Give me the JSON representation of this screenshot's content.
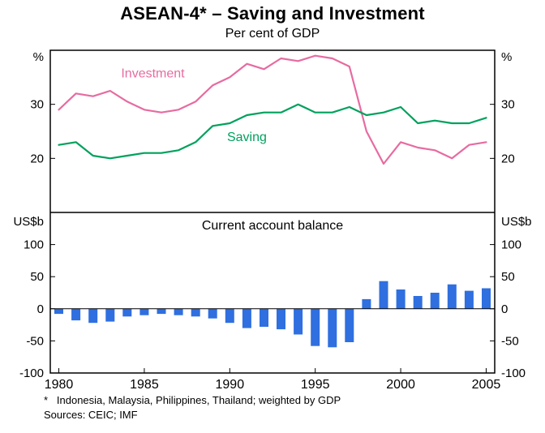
{
  "header": {
    "title": "ASEAN-4* – Saving and Investment",
    "subtitle": "Per cent of GDP"
  },
  "footnotes": {
    "note": "*   Indonesia, Malaysia, Philippines, Thailand; weighted by GDP",
    "sources": "Sources: CEIC; IMF"
  },
  "colors": {
    "investment": "#e76ba0",
    "saving": "#00a15d",
    "bars": "#2f6fe0",
    "axis": "#000000"
  },
  "x_axis": {
    "range": [
      1980,
      2005
    ],
    "tick_years": [
      1980,
      1985,
      1990,
      1995,
      2000,
      2005
    ]
  },
  "chart_data": [
    {
      "type": "line",
      "panel": "top",
      "unit_label": "%",
      "ylim": [
        10,
        40
      ],
      "yticks": [
        20,
        30
      ],
      "x": [
        1980,
        1981,
        1982,
        1983,
        1984,
        1985,
        1986,
        1987,
        1988,
        1989,
        1990,
        1991,
        1992,
        1993,
        1994,
        1995,
        1996,
        1997,
        1998,
        1999,
        2000,
        2001,
        2002,
        2003,
        2004,
        2005
      ],
      "series": [
        {
          "name": "Investment",
          "color": "#e76ba0",
          "values": [
            29,
            32,
            31.5,
            32.5,
            30.5,
            29,
            28.5,
            29,
            30.5,
            33.5,
            35,
            37.5,
            36.5,
            38.5,
            38,
            39,
            38.5,
            37,
            25,
            19,
            23,
            22,
            21.5,
            20,
            22.5,
            23
          ],
          "label_pos": {
            "year": 1985.5,
            "value": 35
          }
        },
        {
          "name": "Saving",
          "color": "#00a15d",
          "values": [
            22.5,
            23,
            20.5,
            20,
            20.5,
            21,
            21,
            21.5,
            23,
            26,
            26.5,
            28,
            28.5,
            28.5,
            30,
            28.5,
            28.5,
            29.5,
            28,
            28.5,
            29.5,
            26.5,
            27,
            26.5,
            26.5,
            27.5
          ],
          "label_pos": {
            "year": 1991,
            "value": 23.2
          }
        }
      ]
    },
    {
      "type": "bar",
      "panel": "bottom",
      "title": "Current account balance",
      "unit_label": "US$b",
      "ylim": [
        -100,
        150
      ],
      "yticks": [
        -100,
        -50,
        0,
        50,
        100
      ],
      "x": [
        1980,
        1981,
        1982,
        1983,
        1984,
        1985,
        1986,
        1987,
        1988,
        1989,
        1990,
        1991,
        1992,
        1993,
        1994,
        1995,
        1996,
        1997,
        1998,
        1999,
        2000,
        2001,
        2002,
        2003,
        2004,
        2005
      ],
      "values": [
        -8,
        -18,
        -22,
        -20,
        -12,
        -10,
        -8,
        -10,
        -12,
        -15,
        -22,
        -30,
        -28,
        -32,
        -40,
        -58,
        -60,
        -52,
        15,
        43,
        30,
        20,
        25,
        38,
        28,
        32
      ]
    }
  ]
}
